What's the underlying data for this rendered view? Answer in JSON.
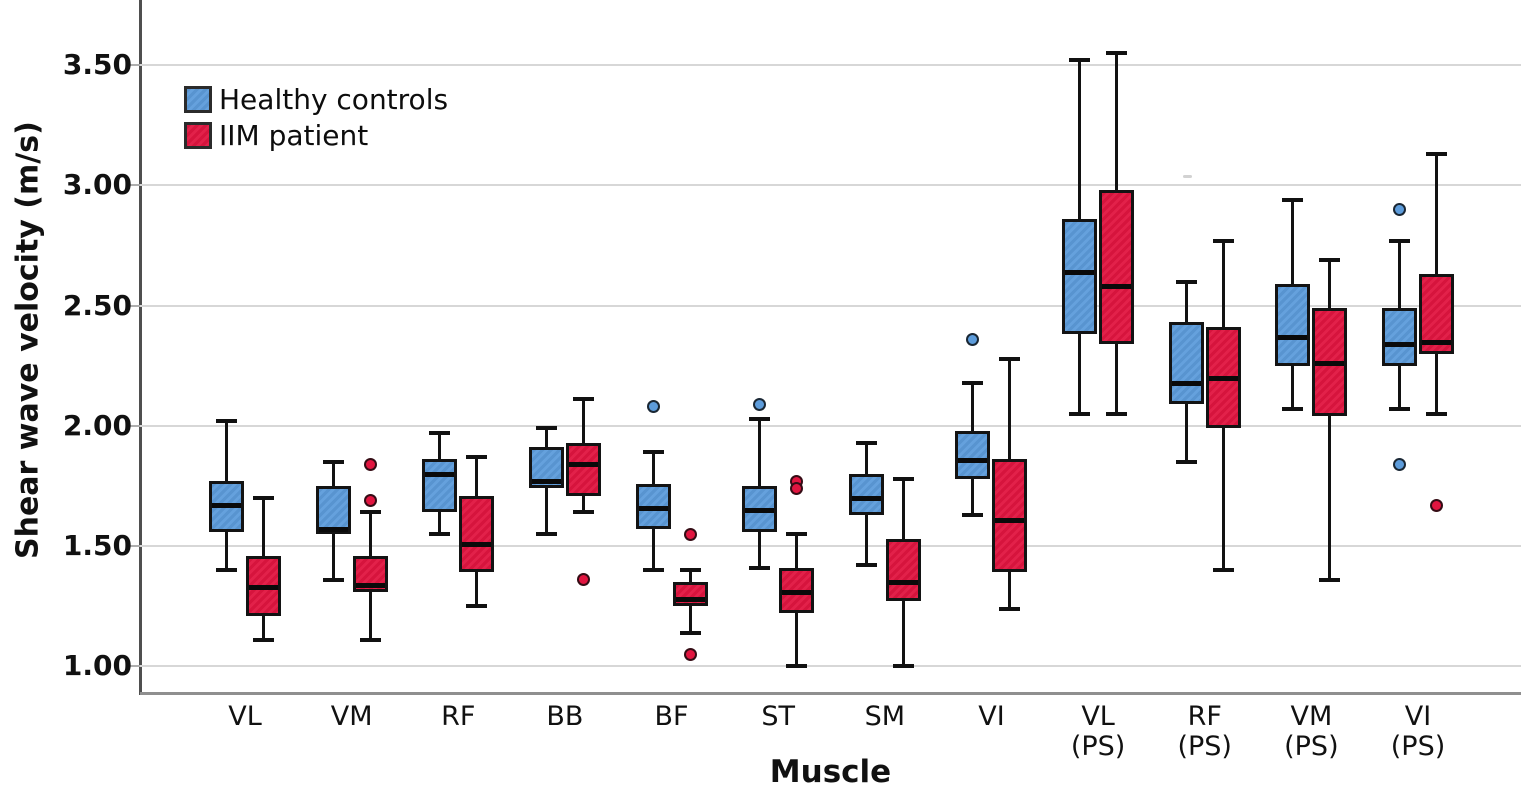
{
  "figure": {
    "y_axis_title": "Shear wave velocity (m/s)",
    "x_axis_title": "Muscle"
  },
  "chart_data": {
    "type": "boxplot",
    "title": "",
    "ylabel": "Shear wave velocity (m/s)",
    "xlabel": "Muscle",
    "units": "m/s",
    "grid": true,
    "legend_position": "top-left-inside",
    "ylim": [
      0.893,
      3.771
    ],
    "yticks": [
      1.0,
      1.5,
      2.0,
      2.5,
      3.0,
      3.5
    ],
    "ytick_labels": [
      "1.00",
      "1.50",
      "2.00",
      "2.50",
      "3.00",
      "3.50"
    ],
    "categories": [
      "VL",
      "VM",
      "RF",
      "BB",
      "BF",
      "ST",
      "SM",
      "VI",
      "VL (PS)",
      "RF (PS)",
      "VM (PS)",
      "VI (PS)"
    ],
    "category_labels": [
      {
        "line1": "VL",
        "line2": ""
      },
      {
        "line1": "VM",
        "line2": ""
      },
      {
        "line1": "RF",
        "line2": ""
      },
      {
        "line1": "BB",
        "line2": ""
      },
      {
        "line1": "BF",
        "line2": ""
      },
      {
        "line1": "ST",
        "line2": ""
      },
      {
        "line1": "SM",
        "line2": ""
      },
      {
        "line1": "VI",
        "line2": ""
      },
      {
        "line1": "VL",
        "line2": "(PS)"
      },
      {
        "line1": "RF",
        "line2": "(PS)"
      },
      {
        "line1": "VM",
        "line2": "(PS)"
      },
      {
        "line1": "VI",
        "line2": "(PS)"
      }
    ],
    "series": [
      {
        "name": "Healthy controls",
        "color": "#5d9cdb",
        "boxes": [
          {
            "whisker_low": 1.4,
            "q1": 1.56,
            "median": 1.68,
            "q3": 1.77,
            "whisker_high": 2.02,
            "outliers": []
          },
          {
            "whisker_low": 1.36,
            "q1": 1.55,
            "median": 1.58,
            "q3": 1.75,
            "whisker_high": 1.85,
            "outliers": []
          },
          {
            "whisker_low": 1.55,
            "q1": 1.64,
            "median": 1.81,
            "q3": 1.86,
            "whisker_high": 1.97,
            "outliers": []
          },
          {
            "whisker_low": 1.55,
            "q1": 1.74,
            "median": 1.78,
            "q3": 1.91,
            "whisker_high": 1.99,
            "outliers": []
          },
          {
            "whisker_low": 1.4,
            "q1": 1.57,
            "median": 1.67,
            "q3": 1.76,
            "whisker_high": 1.89,
            "outliers": [
              2.08
            ]
          },
          {
            "whisker_low": 1.41,
            "q1": 1.56,
            "median": 1.66,
            "q3": 1.75,
            "whisker_high": 2.03,
            "outliers": [
              2.09
            ]
          },
          {
            "whisker_low": 1.42,
            "q1": 1.63,
            "median": 1.71,
            "q3": 1.8,
            "whisker_high": 1.93,
            "outliers": []
          },
          {
            "whisker_low": 1.63,
            "q1": 1.78,
            "median": 1.87,
            "q3": 1.98,
            "whisker_high": 2.18,
            "outliers": [
              2.36
            ]
          },
          {
            "whisker_low": 2.05,
            "q1": 2.38,
            "median": 2.65,
            "q3": 2.86,
            "whisker_high": 3.52,
            "outliers": []
          },
          {
            "whisker_low": 1.85,
            "q1": 2.09,
            "median": 2.19,
            "q3": 2.43,
            "whisker_high": 2.6,
            "outliers": []
          },
          {
            "whisker_low": 2.07,
            "q1": 2.25,
            "median": 2.38,
            "q3": 2.59,
            "whisker_high": 2.94,
            "outliers": []
          },
          {
            "whisker_low": 2.07,
            "q1": 2.25,
            "median": 2.35,
            "q3": 2.49,
            "whisker_high": 2.77,
            "outliers": [
              2.9,
              1.84
            ]
          }
        ]
      },
      {
        "name": "IIM patient",
        "color": "#e11540",
        "boxes": [
          {
            "whisker_low": 1.11,
            "q1": 1.21,
            "median": 1.34,
            "q3": 1.46,
            "whisker_high": 1.7,
            "outliers": []
          },
          {
            "whisker_low": 1.11,
            "q1": 1.31,
            "median": 1.35,
            "q3": 1.46,
            "whisker_high": 1.64,
            "outliers": [
              1.84,
              1.69
            ]
          },
          {
            "whisker_low": 1.25,
            "q1": 1.39,
            "median": 1.52,
            "q3": 1.71,
            "whisker_high": 1.87,
            "outliers": []
          },
          {
            "whisker_low": 1.64,
            "q1": 1.71,
            "median": 1.85,
            "q3": 1.93,
            "whisker_high": 2.11,
            "outliers": [
              1.36
            ]
          },
          {
            "whisker_low": 1.14,
            "q1": 1.25,
            "median": 1.29,
            "q3": 1.35,
            "whisker_high": 1.4,
            "outliers": [
              1.55,
              1.05
            ]
          },
          {
            "whisker_low": 1.0,
            "q1": 1.22,
            "median": 1.32,
            "q3": 1.41,
            "whisker_high": 1.55,
            "outliers": [
              1.77,
              1.74
            ]
          },
          {
            "whisker_low": 1.0,
            "q1": 1.27,
            "median": 1.36,
            "q3": 1.53,
            "whisker_high": 1.78,
            "outliers": []
          },
          {
            "whisker_low": 1.24,
            "q1": 1.39,
            "median": 1.62,
            "q3": 1.86,
            "whisker_high": 2.28,
            "outliers": []
          },
          {
            "whisker_low": 2.05,
            "q1": 2.34,
            "median": 2.59,
            "q3": 2.98,
            "whisker_high": 3.55,
            "outliers": []
          },
          {
            "whisker_low": 1.4,
            "q1": 1.99,
            "median": 2.21,
            "q3": 2.41,
            "whisker_high": 2.77,
            "outliers": []
          },
          {
            "whisker_low": 1.36,
            "q1": 2.04,
            "median": 2.27,
            "q3": 2.49,
            "whisker_high": 2.69,
            "outliers": []
          },
          {
            "whisker_low": 2.05,
            "q1": 2.3,
            "median": 2.36,
            "q3": 2.63,
            "whisker_high": 3.13,
            "outliers": [
              1.67
            ]
          }
        ]
      }
    ]
  }
}
